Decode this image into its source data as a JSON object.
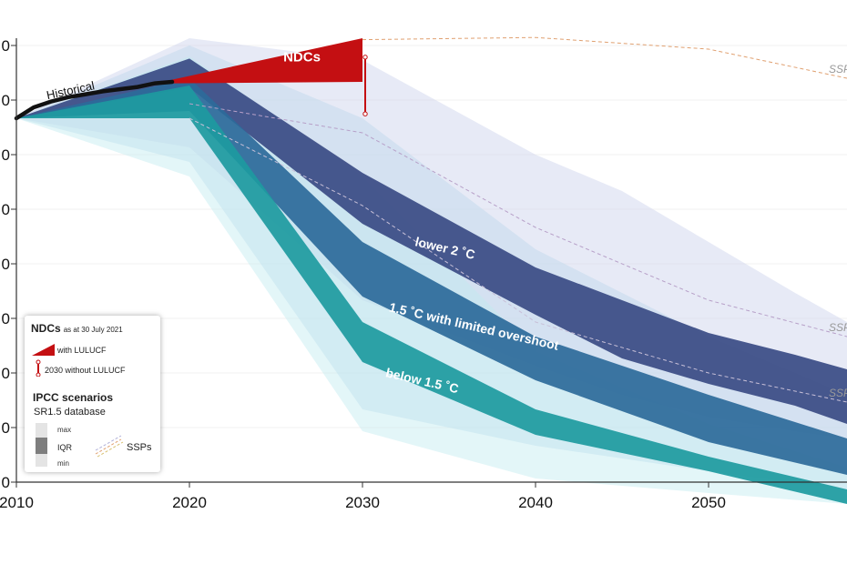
{
  "chart_data": {
    "type": "area",
    "x_ticks": [
      "2010",
      "2020",
      "2030",
      "2040",
      "2050"
    ],
    "y_ticks": [
      "0",
      "0",
      "0",
      "0",
      "0",
      "0",
      "0",
      "0",
      "0"
    ],
    "xlim": [
      2010,
      2058
    ],
    "ylim": [
      0,
      60
    ],
    "historical": {
      "label": "Historical",
      "x": [
        2010,
        2011,
        2012,
        2013,
        2014,
        2015,
        2016,
        2017,
        2018,
        2019
      ],
      "y": [
        50,
        51.5,
        52.3,
        52.9,
        53.3,
        53.7,
        54.0,
        54.3,
        54.8,
        55.0
      ]
    },
    "ndcs": {
      "label": "NDCs",
      "x": [
        2019,
        2030
      ],
      "upper": [
        55.3,
        61.0
      ],
      "lower": [
        54.8,
        55.0
      ],
      "without_lulucf_range": [
        50.6,
        58.4
      ],
      "color": "#c40f12"
    },
    "scenarios": [
      {
        "name": "lower 2 ˚C",
        "color": "#3a4b84",
        "x": [
          2010,
          2020,
          2030,
          2040,
          2045,
          2050,
          2055,
          2058
        ],
        "iqr_upper": [
          50,
          58.2,
          42.5,
          29.5,
          25.0,
          20.5,
          17.5,
          15.5
        ],
        "iqr_lower": [
          50,
          54.2,
          35.5,
          23.0,
          17.0,
          13.5,
          10.5,
          8.0
        ],
        "range_upper": [
          50,
          61.0,
          58.0,
          45.0,
          40.0,
          33.0,
          26.0,
          22.0
        ],
        "range_lower": [
          50,
          46.0,
          25.0,
          16.0,
          12.0,
          9.0,
          7.0,
          6.0
        ]
      },
      {
        "name": "1.5 ˚C with limited overshoot",
        "color": "#2d6a9a",
        "x": [
          2010,
          2020,
          2030,
          2040,
          2050,
          2058
        ],
        "iqr_upper": [
          50,
          55.5,
          33.0,
          20.0,
          12.0,
          6.0
        ],
        "iqr_lower": [
          50,
          51.0,
          25.5,
          14.0,
          5.5,
          1.0
        ],
        "range_upper": [
          50,
          60.0,
          50.0,
          32.0,
          20.0,
          12.0
        ],
        "range_lower": [
          50,
          44.0,
          10.0,
          5.0,
          1.5,
          -1.0
        ]
      },
      {
        "name": "below 1.5 ˚C",
        "color": "#1d9aa0",
        "x": [
          2010,
          2020,
          2030,
          2040,
          2050,
          2058
        ],
        "iqr_upper": [
          50,
          54.5,
          22.0,
          10.0,
          3.5,
          -1.0
        ],
        "iqr_lower": [
          50,
          50.0,
          16.5,
          6.5,
          1.5,
          -3.0
        ],
        "range_upper": [
          50,
          58.5,
          42.0,
          18.0,
          8.0,
          2.0
        ],
        "range_lower": [
          50,
          42.0,
          7.0,
          0.5,
          -1.5,
          -3.0
        ]
      }
    ],
    "ssps": [
      {
        "label": "SSP",
        "x": [
          2030,
          2040,
          2050,
          2058
        ],
        "y": [
          60.8,
          61.1,
          59.5,
          55.5
        ]
      },
      {
        "label": "SSP",
        "x": [
          2020,
          2030,
          2040,
          2050,
          2058
        ],
        "y": [
          52.0,
          48.0,
          35.0,
          25.0,
          20.0
        ]
      },
      {
        "label": "SSP",
        "x": [
          2020,
          2030,
          2040,
          2050,
          2058
        ],
        "y": [
          50.0,
          38.0,
          22.0,
          15.0,
          11.0
        ]
      }
    ]
  },
  "legend": {
    "ndcs_title": "NDCs",
    "ndcs_date": "as at 30 July 2021",
    "with_lulucf": "with LULUCF",
    "without_lulucf": "2030 without LULUCF",
    "ipcc_title": "IPCC scenarios",
    "database": "SR1.5 database",
    "max": "max",
    "iqr": "IQR",
    "min": "min",
    "ssps": "SSPs",
    "colors": {
      "ndc": "#c40f12",
      "iqr": "#888888",
      "range": "#dcdcdc",
      "ssp": "#e0a070"
    }
  }
}
